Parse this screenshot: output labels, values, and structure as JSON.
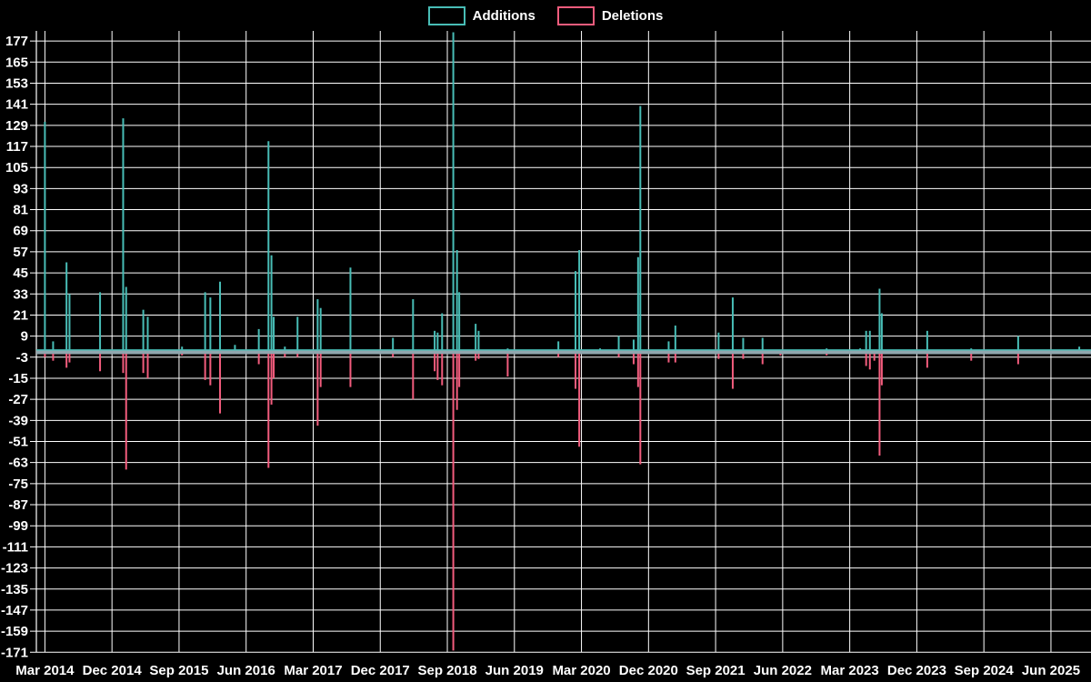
{
  "legend": {
    "additions_label": "Additions",
    "deletions_label": "Deletions"
  },
  "colors": {
    "background": "#000000",
    "grid": "#ffffff",
    "text": "#ffffff",
    "additions": "#48bdb6",
    "deletions": "#f25c7d",
    "zero_baseline": "#90a6ae"
  },
  "chart_data": {
    "type": "line",
    "title": "",
    "xlabel": "",
    "ylabel": "",
    "legend_entries": [
      "Additions",
      "Deletions"
    ],
    "legend_position": "top-center",
    "grid": "on",
    "background": "#000000",
    "grid_color": "#ffffff",
    "baseline_color": "#90a6ae",
    "ylim": [
      -171,
      177
    ],
    "y_tick_step": 12,
    "y_ticks": [
      177,
      165,
      153,
      141,
      129,
      117,
      105,
      93,
      81,
      69,
      57,
      45,
      33,
      21,
      9,
      -3,
      -15,
      -27,
      -39,
      -51,
      -63,
      -75,
      -87,
      -99,
      -111,
      -123,
      -135,
      -147,
      -159,
      -171
    ],
    "x_tick_labels": [
      "Mar 2014",
      "Dec 2014",
      "Sep 2015",
      "Jun 2016",
      "Mar 2017",
      "Dec 2017",
      "Sep 2018",
      "Jun 2019",
      "Mar 2020",
      "Dec 2020",
      "Sep 2021",
      "Jun 2022",
      "Mar 2023",
      "Dec 2023",
      "Sep 2024",
      "Jun 2025"
    ],
    "x_tick_interval_months": 9,
    "x_unit": "months since Mar 2014 (weekly commit data)",
    "series": [
      {
        "name": "Additions",
        "color": "#48bdb6",
        "spikes": [
          [
            0,
            131
          ],
          [
            1.1,
            6
          ],
          [
            2.9,
            51
          ],
          [
            3.3,
            33
          ],
          [
            7.4,
            34
          ],
          [
            10.5,
            133
          ],
          [
            10.9,
            37
          ],
          [
            13.2,
            24
          ],
          [
            13.8,
            20
          ],
          [
            18.4,
            3
          ],
          [
            21.5,
            34
          ],
          [
            22.2,
            31
          ],
          [
            23.5,
            40
          ],
          [
            25.5,
            4
          ],
          [
            28.7,
            13
          ],
          [
            30,
            120
          ],
          [
            30.4,
            55
          ],
          [
            30.7,
            20
          ],
          [
            32.2,
            3
          ],
          [
            33.9,
            20
          ],
          [
            36.6,
            30
          ],
          [
            37,
            25
          ],
          [
            41,
            48
          ],
          [
            46.7,
            8
          ],
          [
            49.4,
            30
          ],
          [
            52.3,
            12
          ],
          [
            52.7,
            11
          ],
          [
            53.3,
            22
          ],
          [
            54.8,
            182
          ],
          [
            55.3,
            58
          ],
          [
            55.6,
            34
          ],
          [
            57.8,
            16
          ],
          [
            58.2,
            12
          ],
          [
            62.1,
            2
          ],
          [
            68.9,
            6
          ],
          [
            71.2,
            46
          ],
          [
            71.7,
            58
          ],
          [
            74.5,
            2
          ],
          [
            77,
            9
          ],
          [
            79,
            7
          ],
          [
            79.6,
            54
          ],
          [
            79.9,
            140
          ],
          [
            83.7,
            6
          ],
          [
            84.6,
            15
          ],
          [
            90.4,
            11
          ],
          [
            92.3,
            31
          ],
          [
            93.7,
            8
          ],
          [
            96.3,
            8
          ],
          [
            104.9,
            2
          ],
          [
            109.4,
            2
          ],
          [
            110.2,
            12
          ],
          [
            110.7,
            12
          ],
          [
            111.3,
            1
          ],
          [
            112,
            36
          ],
          [
            112.3,
            22
          ],
          [
            118.4,
            12
          ],
          [
            124.3,
            2
          ],
          [
            130.6,
            9
          ],
          [
            138.8,
            3
          ]
        ]
      },
      {
        "name": "Deletions",
        "color": "#f25c7d",
        "spikes": [
          [
            0,
            -3
          ],
          [
            1.1,
            -5
          ],
          [
            2.9,
            -9
          ],
          [
            3.3,
            -6
          ],
          [
            7.4,
            -11
          ],
          [
            10.5,
            -12
          ],
          [
            10.9,
            -67
          ],
          [
            13.2,
            -12
          ],
          [
            13.8,
            -15
          ],
          [
            18.4,
            -2
          ],
          [
            21.5,
            -16
          ],
          [
            22.2,
            -19
          ],
          [
            23.5,
            -35
          ],
          [
            25.5,
            -1
          ],
          [
            28.7,
            -7
          ],
          [
            30,
            -66
          ],
          [
            30.4,
            -30
          ],
          [
            30.7,
            -15
          ],
          [
            32.2,
            -3
          ],
          [
            33.9,
            -3
          ],
          [
            36.6,
            -42
          ],
          [
            37,
            -20
          ],
          [
            41,
            -20
          ],
          [
            46.7,
            -3
          ],
          [
            49.4,
            -27
          ],
          [
            52.3,
            -11
          ],
          [
            52.7,
            -16
          ],
          [
            53.3,
            -19
          ],
          [
            54.8,
            -170
          ],
          [
            55.3,
            -33
          ],
          [
            55.6,
            -20
          ],
          [
            57.8,
            -5
          ],
          [
            58.2,
            -4
          ],
          [
            62.1,
            -14
          ],
          [
            68.9,
            -3
          ],
          [
            71.2,
            -21
          ],
          [
            71.7,
            -54
          ],
          [
            77,
            -3
          ],
          [
            79,
            -7
          ],
          [
            79.6,
            -20
          ],
          [
            79.9,
            -64
          ],
          [
            83.7,
            -6
          ],
          [
            84.6,
            -6
          ],
          [
            90.4,
            -4
          ],
          [
            92.3,
            -21
          ],
          [
            93.7,
            -4
          ],
          [
            96.3,
            -7
          ],
          [
            98.7,
            -2
          ],
          [
            104.9,
            -2
          ],
          [
            110.2,
            -8
          ],
          [
            110.7,
            -10
          ],
          [
            111.3,
            -5
          ],
          [
            112,
            -59
          ],
          [
            112.3,
            -19
          ],
          [
            118.4,
            -9
          ],
          [
            124.3,
            -5
          ],
          [
            130.6,
            -7
          ],
          [
            138.8,
            -1
          ]
        ]
      }
    ]
  }
}
